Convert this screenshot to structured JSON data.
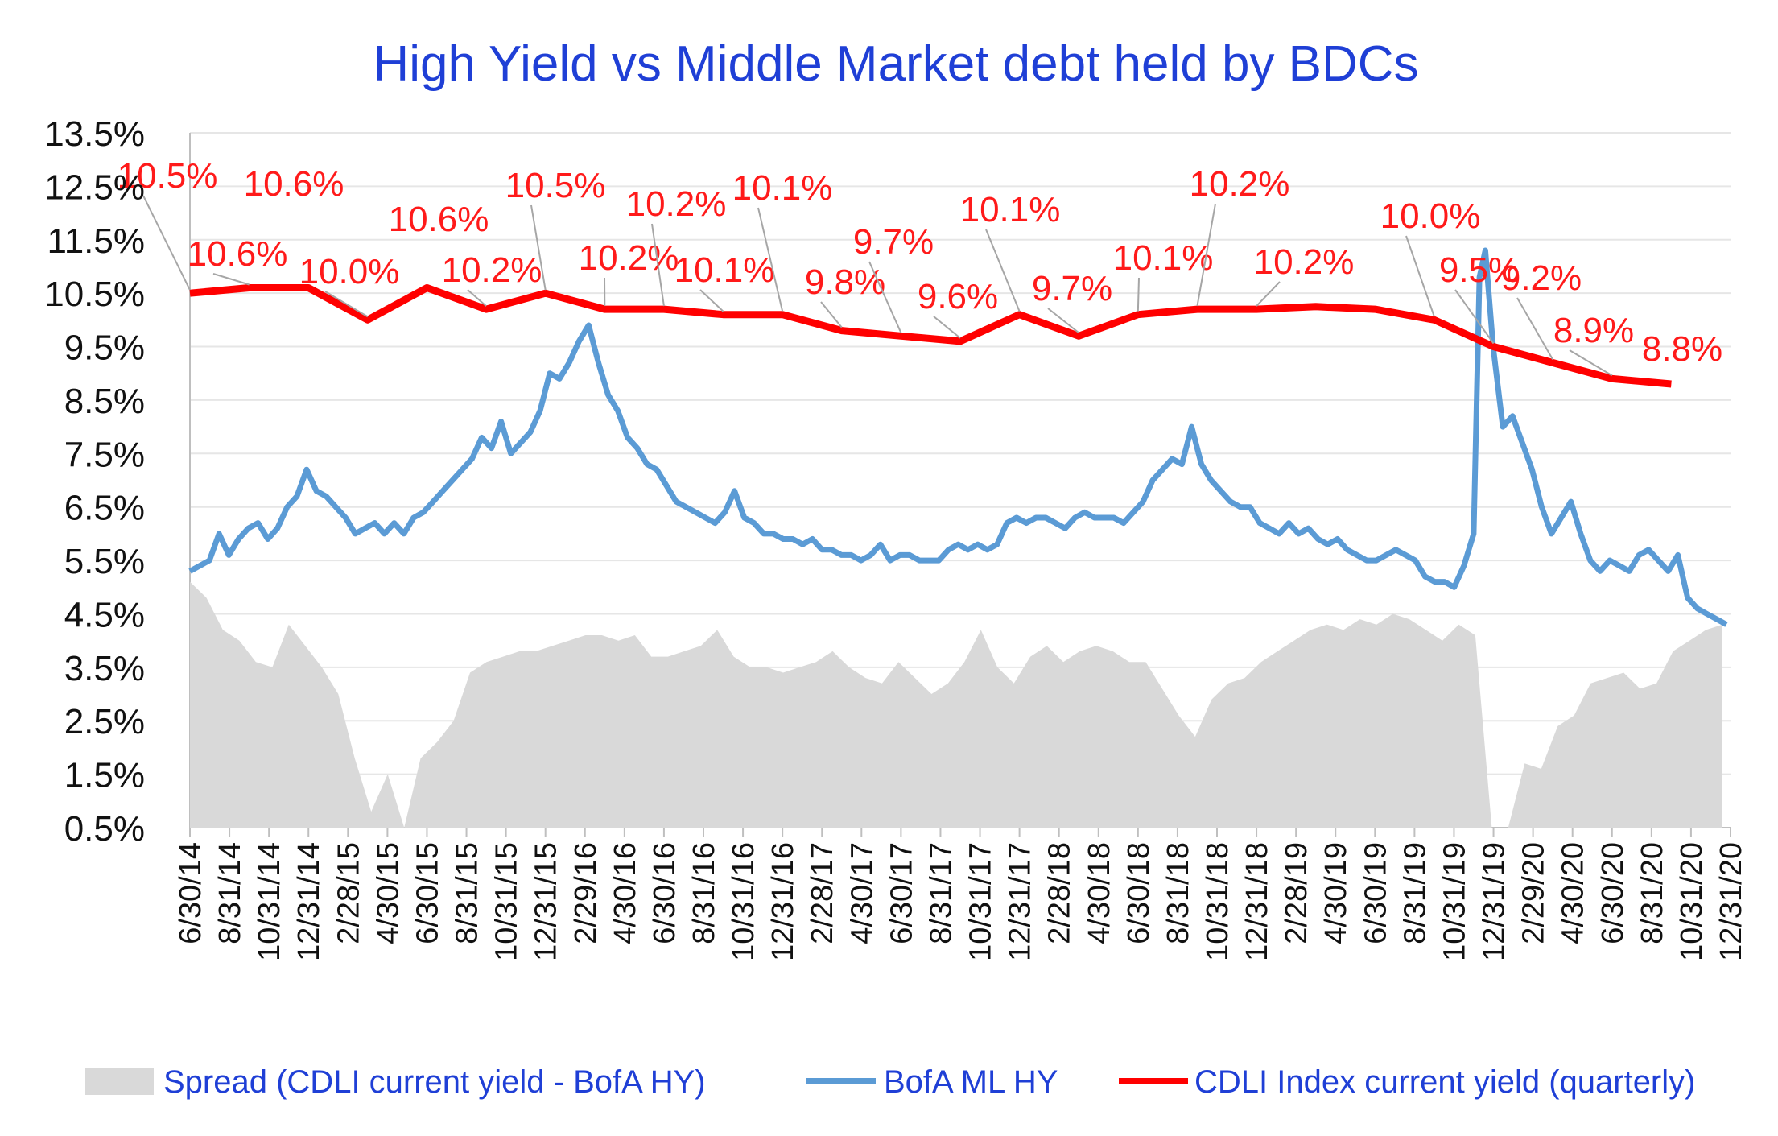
{
  "chart_data": {
    "type": "line",
    "title": "High Yield  vs  Middle Market debt held by BDCs",
    "ylim": [
      0.5,
      13.5
    ],
    "y_ticks": [
      "13.5%",
      "12.5%",
      "11.5%",
      "10.5%",
      "9.5%",
      "8.5%",
      "7.5%",
      "6.5%",
      "5.5%",
      "4.5%",
      "3.5%",
      "2.5%",
      "1.5%",
      "0.5%"
    ],
    "x_ticks": [
      "6/30/14",
      "8/31/14",
      "10/31/14",
      "12/31/14",
      "2/28/15",
      "4/30/15",
      "6/30/15",
      "8/31/15",
      "10/31/15",
      "12/31/15",
      "2/29/16",
      "4/30/16",
      "6/30/16",
      "8/31/16",
      "10/31/16",
      "12/31/16",
      "2/28/17",
      "4/30/17",
      "6/30/17",
      "8/31/17",
      "10/31/17",
      "12/31/17",
      "2/28/18",
      "4/30/18",
      "6/30/18",
      "8/31/18",
      "10/31/18",
      "12/31/18",
      "2/28/19",
      "4/30/19",
      "6/30/19",
      "8/31/19",
      "10/31/19",
      "12/31/19",
      "2/29/20",
      "4/30/20",
      "6/30/20",
      "8/31/20",
      "10/31/20",
      "12/31/20"
    ],
    "grid": true,
    "legend_position": "bottom",
    "series": [
      {
        "name": "Spread (CDLI current yield - BofA HY)",
        "kind": "area",
        "color": "#d9d9d9",
        "points": [
          [
            0,
            5.1
          ],
          [
            1,
            4.8
          ],
          [
            2,
            4.2
          ],
          [
            3,
            4.0
          ],
          [
            4,
            3.6
          ],
          [
            5,
            3.5
          ],
          [
            6,
            4.3
          ],
          [
            7,
            3.9
          ],
          [
            8,
            3.5
          ],
          [
            9,
            3.0
          ],
          [
            10,
            1.8
          ],
          [
            11,
            0.8
          ],
          [
            12,
            1.5
          ],
          [
            13,
            0.5
          ],
          [
            14,
            1.8
          ],
          [
            15,
            2.1
          ],
          [
            16,
            2.5
          ],
          [
            17,
            3.4
          ],
          [
            18,
            3.6
          ],
          [
            19,
            3.7
          ],
          [
            20,
            3.8
          ],
          [
            21,
            3.8
          ],
          [
            22,
            3.9
          ],
          [
            23,
            4.0
          ],
          [
            24,
            4.1
          ],
          [
            25,
            4.1
          ],
          [
            26,
            4.0
          ],
          [
            27,
            4.1
          ],
          [
            28,
            3.7
          ],
          [
            29,
            3.7
          ],
          [
            30,
            3.8
          ],
          [
            31,
            3.9
          ],
          [
            32,
            4.2
          ],
          [
            33,
            3.7
          ],
          [
            34,
            3.5
          ],
          [
            35,
            3.5
          ],
          [
            36,
            3.4
          ],
          [
            37,
            3.5
          ],
          [
            38,
            3.6
          ],
          [
            39,
            3.8
          ],
          [
            40,
            3.5
          ],
          [
            41,
            3.3
          ],
          [
            42,
            3.2
          ],
          [
            43,
            3.6
          ],
          [
            44,
            3.3
          ],
          [
            45,
            3.0
          ],
          [
            46,
            3.2
          ],
          [
            47,
            3.6
          ],
          [
            48,
            4.2
          ],
          [
            49,
            3.5
          ],
          [
            50,
            3.2
          ],
          [
            51,
            3.7
          ],
          [
            52,
            3.9
          ],
          [
            53,
            3.6
          ],
          [
            54,
            3.8
          ],
          [
            55,
            3.9
          ],
          [
            56,
            3.8
          ],
          [
            57,
            3.6
          ],
          [
            58,
            3.6
          ],
          [
            59,
            3.1
          ],
          [
            60,
            2.6
          ],
          [
            61,
            2.2
          ],
          [
            62,
            2.9
          ],
          [
            63,
            3.2
          ],
          [
            64,
            3.3
          ],
          [
            65,
            3.6
          ],
          [
            66,
            3.8
          ],
          [
            67,
            4.0
          ],
          [
            68,
            4.2
          ],
          [
            69,
            4.3
          ],
          [
            70,
            4.2
          ],
          [
            71,
            4.4
          ],
          [
            72,
            4.3
          ],
          [
            73,
            4.5
          ],
          [
            74,
            4.4
          ],
          [
            75,
            4.2
          ],
          [
            76,
            4.0
          ],
          [
            77,
            4.3
          ],
          [
            78,
            4.1
          ],
          [
            79,
            0.5
          ],
          [
            80,
            0.5
          ],
          [
            81,
            1.7
          ],
          [
            82,
            1.6
          ],
          [
            83,
            2.4
          ],
          [
            84,
            2.6
          ],
          [
            85,
            3.2
          ],
          [
            86,
            3.3
          ],
          [
            87,
            3.4
          ],
          [
            88,
            3.1
          ],
          [
            89,
            3.2
          ],
          [
            90,
            3.8
          ],
          [
            91,
            4.0
          ],
          [
            92,
            4.2
          ],
          [
            93,
            4.3
          ]
        ]
      },
      {
        "name": "BofA ML HY",
        "kind": "line",
        "color": "#5b9bd5",
        "points": [
          [
            0,
            5.3
          ],
          [
            1,
            5.5
          ],
          [
            1.5,
            6.0
          ],
          [
            2,
            5.6
          ],
          [
            2.5,
            5.9
          ],
          [
            3,
            6.1
          ],
          [
            3.5,
            6.2
          ],
          [
            4,
            5.9
          ],
          [
            4.5,
            6.1
          ],
          [
            5,
            6.5
          ],
          [
            5.5,
            6.7
          ],
          [
            6,
            7.2
          ],
          [
            6.5,
            6.8
          ],
          [
            7,
            6.7
          ],
          [
            7.5,
            6.5
          ],
          [
            8,
            6.3
          ],
          [
            8.5,
            6.0
          ],
          [
            9,
            6.1
          ],
          [
            9.5,
            6.2
          ],
          [
            10,
            6.0
          ],
          [
            10.5,
            6.2
          ],
          [
            11,
            6.0
          ],
          [
            11.5,
            6.3
          ],
          [
            12,
            6.4
          ],
          [
            12.5,
            6.6
          ],
          [
            13,
            6.8
          ],
          [
            13.5,
            7.0
          ],
          [
            14,
            7.2
          ],
          [
            14.5,
            7.4
          ],
          [
            15,
            7.8
          ],
          [
            15.5,
            7.6
          ],
          [
            16,
            8.1
          ],
          [
            16.5,
            7.5
          ],
          [
            17,
            7.7
          ],
          [
            17.5,
            7.9
          ],
          [
            18,
            8.3
          ],
          [
            18.5,
            9.0
          ],
          [
            19,
            8.9
          ],
          [
            19.5,
            9.2
          ],
          [
            20,
            9.6
          ],
          [
            20.5,
            9.9
          ],
          [
            21,
            9.2
          ],
          [
            21.5,
            8.6
          ],
          [
            22,
            8.3
          ],
          [
            22.5,
            7.8
          ],
          [
            23,
            7.6
          ],
          [
            23.5,
            7.3
          ],
          [
            24,
            7.2
          ],
          [
            24.5,
            6.9
          ],
          [
            25,
            6.6
          ],
          [
            25.5,
            6.5
          ],
          [
            26,
            6.4
          ],
          [
            26.5,
            6.3
          ],
          [
            27,
            6.2
          ],
          [
            27.5,
            6.4
          ],
          [
            28,
            6.8
          ],
          [
            28.5,
            6.3
          ],
          [
            29,
            6.2
          ],
          [
            29.5,
            6.0
          ],
          [
            30,
            6.0
          ],
          [
            30.5,
            5.9
          ],
          [
            31,
            5.9
          ],
          [
            31.5,
            5.8
          ],
          [
            32,
            5.9
          ],
          [
            32.5,
            5.7
          ],
          [
            33,
            5.7
          ],
          [
            33.5,
            5.6
          ],
          [
            34,
            5.6
          ],
          [
            34.5,
            5.5
          ],
          [
            35,
            5.6
          ],
          [
            35.5,
            5.8
          ],
          [
            36,
            5.5
          ],
          [
            36.5,
            5.6
          ],
          [
            37,
            5.6
          ],
          [
            37.5,
            5.5
          ],
          [
            38,
            5.5
          ],
          [
            38.5,
            5.5
          ],
          [
            39,
            5.7
          ],
          [
            39.5,
            5.8
          ],
          [
            40,
            5.7
          ],
          [
            40.5,
            5.8
          ],
          [
            41,
            5.7
          ],
          [
            41.5,
            5.8
          ],
          [
            42,
            6.2
          ],
          [
            42.5,
            6.3
          ],
          [
            43,
            6.2
          ],
          [
            43.5,
            6.3
          ],
          [
            44,
            6.3
          ],
          [
            44.5,
            6.2
          ],
          [
            45,
            6.1
          ],
          [
            45.5,
            6.3
          ],
          [
            46,
            6.4
          ],
          [
            46.5,
            6.3
          ],
          [
            47,
            6.3
          ],
          [
            47.5,
            6.3
          ],
          [
            48,
            6.2
          ],
          [
            48.5,
            6.4
          ],
          [
            49,
            6.6
          ],
          [
            49.5,
            7.0
          ],
          [
            50,
            7.2
          ],
          [
            50.5,
            7.4
          ],
          [
            51,
            7.3
          ],
          [
            51.5,
            8.0
          ],
          [
            52,
            7.3
          ],
          [
            52.5,
            7.0
          ],
          [
            53,
            6.8
          ],
          [
            53.5,
            6.6
          ],
          [
            54,
            6.5
          ],
          [
            54.5,
            6.5
          ],
          [
            55,
            6.2
          ],
          [
            55.5,
            6.1
          ],
          [
            56,
            6.0
          ],
          [
            56.5,
            6.2
          ],
          [
            57,
            6.0
          ],
          [
            57.5,
            6.1
          ],
          [
            58,
            5.9
          ],
          [
            58.5,
            5.8
          ],
          [
            59,
            5.9
          ],
          [
            59.5,
            5.7
          ],
          [
            60,
            5.6
          ],
          [
            60.5,
            5.5
          ],
          [
            61,
            5.5
          ],
          [
            61.5,
            5.6
          ],
          [
            62,
            5.7
          ],
          [
            62.5,
            5.6
          ],
          [
            63,
            5.5
          ],
          [
            63.5,
            5.2
          ],
          [
            64,
            5.1
          ],
          [
            64.5,
            5.1
          ],
          [
            65,
            5.0
          ],
          [
            65.5,
            5.4
          ],
          [
            66,
            6.0
          ],
          [
            66.3,
            10.8
          ],
          [
            66.6,
            11.3
          ],
          [
            67,
            9.5
          ],
          [
            67.5,
            8.0
          ],
          [
            68,
            8.2
          ],
          [
            68.5,
            7.7
          ],
          [
            69,
            7.2
          ],
          [
            69.5,
            6.5
          ],
          [
            70,
            6.0
          ],
          [
            70.5,
            6.3
          ],
          [
            71,
            6.6
          ],
          [
            71.5,
            6.0
          ],
          [
            72,
            5.5
          ],
          [
            72.5,
            5.3
          ],
          [
            73,
            5.5
          ],
          [
            73.5,
            5.4
          ],
          [
            74,
            5.3
          ],
          [
            74.5,
            5.6
          ],
          [
            75,
            5.7
          ],
          [
            75.5,
            5.5
          ],
          [
            76,
            5.3
          ],
          [
            76.5,
            5.6
          ],
          [
            77,
            4.8
          ],
          [
            77.5,
            4.6
          ],
          [
            78,
            4.5
          ],
          [
            78.5,
            4.4
          ],
          [
            79,
            4.3
          ]
        ]
      },
      {
        "name": "CDLI Index current yield (quarterly)",
        "kind": "line",
        "color": "#ff0000",
        "quarter_dates": [
          "6/30/14",
          "9/30/14",
          "12/31/14",
          "3/31/15",
          "6/30/15",
          "9/30/15",
          "12/31/15",
          "3/31/16",
          "6/30/16",
          "9/30/16",
          "12/31/16",
          "3/31/17",
          "6/30/17",
          "9/30/17",
          "12/31/17",
          "3/31/18",
          "6/30/18",
          "9/30/18",
          "12/31/18",
          "3/31/19",
          "6/30/19",
          "9/30/19",
          "12/31/19",
          "3/31/20",
          "6/30/20",
          "9/30/20"
        ],
        "values": [
          10.5,
          10.6,
          10.6,
          10.0,
          10.6,
          10.2,
          10.5,
          10.2,
          10.2,
          10.1,
          10.1,
          9.8,
          9.7,
          9.6,
          10.1,
          9.7,
          10.1,
          10.2,
          10.2,
          10.25,
          10.2,
          10.0,
          9.5,
          9.2,
          8.9,
          8.8
        ]
      }
    ],
    "data_labels": [
      "10.5%",
      "10.6%",
      "10.6%",
      "10.0%",
      "10.6%",
      "10.2%",
      "10.5%",
      "10.2%",
      "10.2%",
      "10.1%",
      "10.1%",
      "9.8%",
      "9.7%",
      "9.6%",
      "10.1%",
      "9.7%",
      "10.1%",
      "10.2%",
      "10.2%",
      "10.0%",
      "9.5%",
      "9.2%",
      "8.9%",
      "8.8%"
    ]
  },
  "legend": [
    {
      "label": "Spread (CDLI current yield - BofA HY)",
      "color": "#d9d9d9"
    },
    {
      "label": "BofA ML HY",
      "color": "#5b9bd5"
    },
    {
      "label": "CDLI Index current yield (quarterly)",
      "color": "#ff0000"
    }
  ]
}
